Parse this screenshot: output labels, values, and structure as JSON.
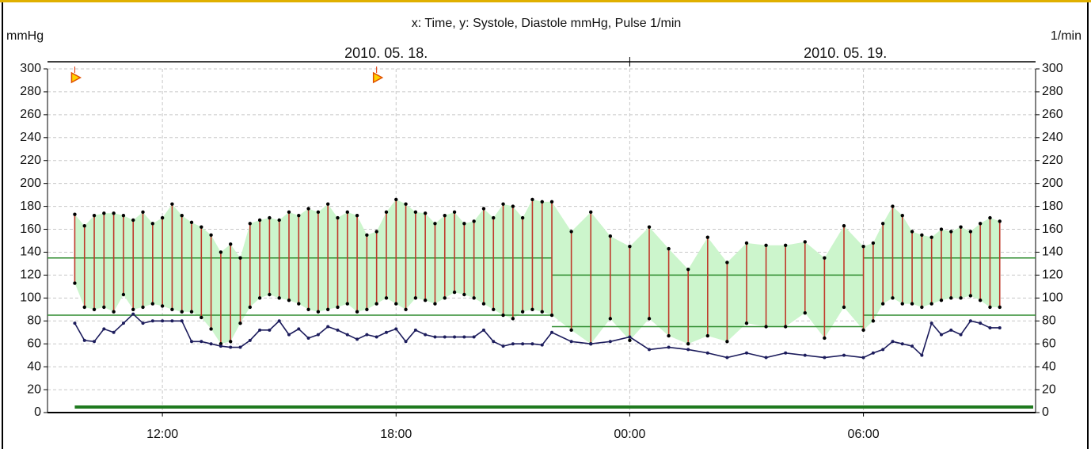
{
  "chart_data": {
    "type": "blood-pressure",
    "title": "x: Time,  y: Systole, Diastole mmHg, Pulse 1/min",
    "y_label": "mmHg",
    "y2_label": "1/min",
    "dates": [
      "2010. 05. 18.",
      "2010. 05. 19."
    ],
    "x": [
      9.75,
      10,
      10.25,
      10.5,
      10.75,
      11,
      11.25,
      11.5,
      11.75,
      12,
      12.25,
      12.5,
      12.75,
      13,
      13.25,
      13.5,
      13.75,
      14,
      14.25,
      14.5,
      14.75,
      15,
      15.25,
      15.5,
      15.75,
      16,
      16.25,
      16.5,
      16.75,
      17,
      17.25,
      17.5,
      17.75,
      18,
      18.25,
      18.5,
      18.75,
      19,
      19.25,
      19.5,
      19.75,
      20,
      20.25,
      20.5,
      20.75,
      21,
      21.25,
      21.5,
      21.75,
      22,
      22.5,
      23,
      23.5,
      24,
      24.5,
      25,
      25.5,
      26,
      26.5,
      27,
      27.5,
      28,
      28.5,
      29,
      29.5,
      30,
      30.25,
      30.5,
      30.75,
      31,
      31.25,
      31.5,
      31.75,
      32,
      32.25,
      32.5,
      32.75,
      33,
      33.25,
      33.5
    ],
    "series": [
      {
        "name": "Systole",
        "color": "#c0392b",
        "values": [
          173,
          163,
          172,
          174,
          174,
          172,
          168,
          175,
          165,
          170,
          182,
          172,
          166,
          162,
          155,
          140,
          147,
          135,
          165,
          168,
          170,
          168,
          175,
          172,
          178,
          175,
          182,
          170,
          175,
          172,
          155,
          158,
          175,
          186,
          182,
          175,
          174,
          165,
          172,
          175,
          165,
          167,
          178,
          170,
          182,
          180,
          170,
          186,
          184,
          184,
          158,
          175,
          154,
          145,
          162,
          143,
          125,
          153,
          131,
          148,
          146,
          146,
          149,
          135,
          163,
          145,
          148,
          165,
          180,
          172,
          158,
          155,
          153,
          160,
          158,
          162,
          158,
          165,
          170,
          167
        ]
      },
      {
        "name": "Diastole",
        "color": "#c0392b",
        "values": [
          113,
          92,
          90,
          92,
          88,
          103,
          90,
          92,
          95,
          93,
          90,
          88,
          88,
          83,
          73,
          60,
          62,
          78,
          92,
          100,
          103,
          100,
          98,
          95,
          90,
          88,
          90,
          92,
          95,
          88,
          90,
          95,
          100,
          95,
          90,
          100,
          98,
          95,
          100,
          105,
          103,
          100,
          95,
          90,
          85,
          82,
          88,
          90,
          88,
          85,
          72,
          60,
          82,
          63,
          82,
          67,
          60,
          67,
          62,
          78,
          75,
          75,
          87,
          65,
          92,
          72,
          80,
          95,
          100,
          95,
          95,
          92,
          95,
          98,
          100,
          100,
          102,
          98,
          92,
          92
        ]
      },
      {
        "name": "Pulse",
        "color": "#1c1c5c",
        "axis": "y2",
        "values": [
          78,
          63,
          62,
          73,
          70,
          78,
          86,
          78,
          80,
          80,
          80,
          80,
          62,
          62,
          60,
          58,
          57,
          57,
          63,
          72,
          72,
          80,
          68,
          73,
          65,
          68,
          75,
          72,
          68,
          64,
          68,
          66,
          70,
          73,
          62,
          72,
          68,
          66,
          66,
          66,
          66,
          66,
          72,
          62,
          58,
          60,
          60,
          60,
          59,
          70,
          62,
          60,
          62,
          66,
          55,
          57,
          55,
          52,
          48,
          52,
          48,
          52,
          50,
          48,
          50,
          48,
          52,
          55,
          62,
          60,
          58,
          50,
          78,
          68,
          72,
          68,
          80,
          78,
          74,
          74
        ]
      }
    ],
    "fill_color": "#ccf5cc",
    "thresholds": [
      {
        "from": 9.05,
        "to": 22,
        "values": [
          135,
          85
        ]
      },
      {
        "from": 22,
        "to": 30,
        "values": [
          120,
          75
        ]
      },
      {
        "from": 30,
        "to": 34.42,
        "values": [
          135,
          85
        ]
      }
    ],
    "threshold_color": "#2e8b2e",
    "markers": [
      9.75,
      17.5
    ],
    "xlim": [
      9.05,
      34.42
    ],
    "xticks": [
      {
        "value": 12,
        "label": "12:00"
      },
      {
        "value": 18,
        "label": "18:00"
      },
      {
        "value": 24,
        "label": "00:00"
      },
      {
        "value": 30,
        "label": "06:00"
      }
    ],
    "ylim": [
      0,
      300
    ],
    "yticks": [
      0,
      20,
      40,
      60,
      80,
      100,
      120,
      140,
      160,
      180,
      200,
      220,
      240,
      260,
      280,
      300
    ],
    "y2lim": [
      0,
      300
    ],
    "y2ticks": [
      0,
      20,
      40,
      60,
      80,
      100,
      120,
      140,
      160,
      180,
      200,
      220,
      240,
      260,
      280,
      300
    ],
    "grid": true
  }
}
